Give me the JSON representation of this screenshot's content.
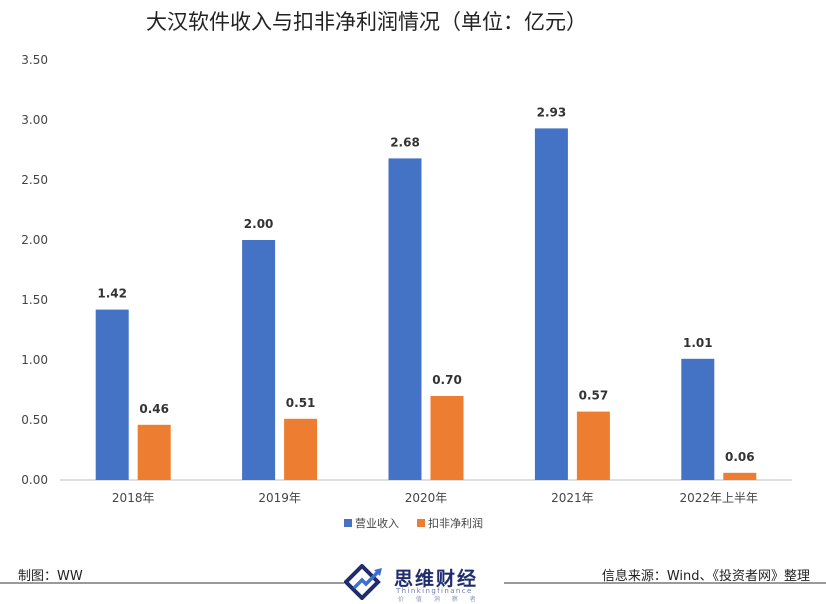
{
  "chart_data": {
    "type": "bar",
    "title": "大汉软件收入与扣非净利润情况（单位：亿元）",
    "categories": [
      "2018年",
      "2019年",
      "2020年",
      "2021年",
      "2022年上半年"
    ],
    "series": [
      {
        "name": "营业收入",
        "color": "#4472C4",
        "values": [
          1.42,
          2.0,
          2.68,
          2.93,
          1.01
        ]
      },
      {
        "name": "扣非净利润",
        "color": "#ED7D31",
        "values": [
          0.46,
          0.51,
          0.7,
          0.57,
          0.06
        ]
      }
    ],
    "ylim": [
      0,
      3.5
    ],
    "yticks": [
      "0.00",
      "0.50",
      "1.00",
      "1.50",
      "2.00",
      "2.50",
      "3.00",
      "3.50"
    ],
    "grid": false,
    "legend": "bottom"
  },
  "footer": {
    "maker": "制图：WW",
    "source": "信息来源：Wind、《投资者网》整理"
  },
  "logo": {
    "name": "思维财经",
    "subtitle": "Thinkingfinance",
    "tagline": "价 值 洞 察 者"
  }
}
